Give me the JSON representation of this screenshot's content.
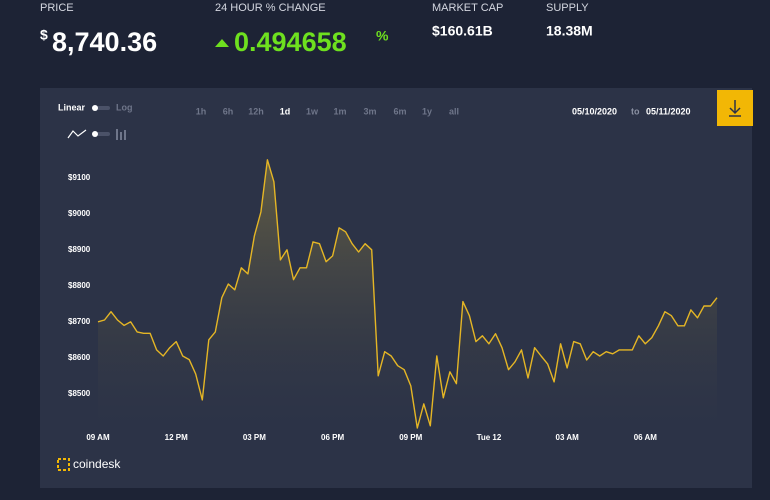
{
  "header": {
    "price_label": "PRICE",
    "price_currency": "$",
    "price": "8,740.36",
    "change_label": "24 HOUR % CHANGE",
    "change": "0.494658",
    "change_unit": "%",
    "market_cap_label": "MARKET CAP",
    "market_cap": "$160.61B",
    "supply_label": "SUPPLY",
    "supply": "18.38M"
  },
  "toolbar": {
    "scale_options": [
      "Linear",
      "Log"
    ],
    "ranges": [
      "1h",
      "6h",
      "12h",
      "1d",
      "1w",
      "1m",
      "3m",
      "6m",
      "1y",
      "all"
    ],
    "date_from": "05/10/2020",
    "date_separator": "to",
    "date_to": "05/11/2020"
  },
  "brand": "coindesk",
  "chart_data": {
    "type": "line",
    "categories": [
      "09 AM",
      null,
      null,
      null,
      null,
      null,
      null,
      null,
      null,
      null,
      null,
      null,
      "12 PM",
      null,
      null,
      null,
      null,
      null,
      null,
      null,
      null,
      null,
      null,
      null,
      "03 PM",
      null,
      null,
      null,
      null,
      null,
      null,
      null,
      null,
      null,
      null,
      null,
      "06 PM",
      null,
      null,
      null,
      null,
      null,
      null,
      null,
      null,
      null,
      null,
      null,
      "09 PM",
      null,
      null,
      null,
      null,
      null,
      null,
      null,
      null,
      null,
      null,
      null,
      "Tue 12",
      null,
      null,
      null,
      null,
      null,
      null,
      null,
      null,
      null,
      null,
      null,
      "03 AM",
      null,
      null,
      null,
      null,
      null,
      null,
      null,
      null,
      null,
      null,
      null,
      "06 AM",
      null,
      null,
      null,
      null,
      null,
      null,
      null,
      null,
      null,
      null,
      null
    ],
    "series": [
      {
        "color": "#e5b625",
        "values": [
          8700,
          8705,
          8728,
          8705,
          8690,
          8700,
          8672,
          8668,
          8668,
          8622,
          8605,
          8628,
          8645,
          8605,
          8595,
          8555,
          8483,
          8650,
          8672,
          8767,
          8805,
          8789,
          8850,
          8833,
          8939,
          9005,
          9150,
          9089,
          8872,
          8900,
          8817,
          8850,
          8850,
          8922,
          8917,
          8867,
          8883,
          8961,
          8950,
          8917,
          8894,
          8917,
          8900,
          8550,
          8617,
          8605,
          8578,
          8567,
          8522,
          8405,
          8472,
          8411,
          8605,
          8489,
          8561,
          8528,
          8756,
          8717,
          8645,
          8661,
          8639,
          8667,
          8628,
          8567,
          8589,
          8622,
          8544,
          8628,
          8605,
          8583,
          8533,
          8639,
          8572,
          8645,
          8639,
          8594,
          8617,
          8605,
          8617,
          8611,
          8622,
          8622,
          8622,
          8661,
          8639,
          8656,
          8689,
          8728,
          8717,
          8689,
          8689,
          8733,
          8711,
          8744,
          8744,
          8767
        ]
      }
    ],
    "ylim": [
      8405,
      9205
    ],
    "yticks": [
      {
        "value": 8500,
        "label": "$8500"
      },
      {
        "value": 8600,
        "label": "$8600"
      },
      {
        "value": 8700,
        "label": "$8700"
      },
      {
        "value": 8800,
        "label": "$8800"
      },
      {
        "value": 8900,
        "label": "$8900"
      },
      {
        "value": 9000,
        "label": "$9000"
      },
      {
        "value": 9100,
        "label": "$9100"
      }
    ],
    "grid": false
  }
}
